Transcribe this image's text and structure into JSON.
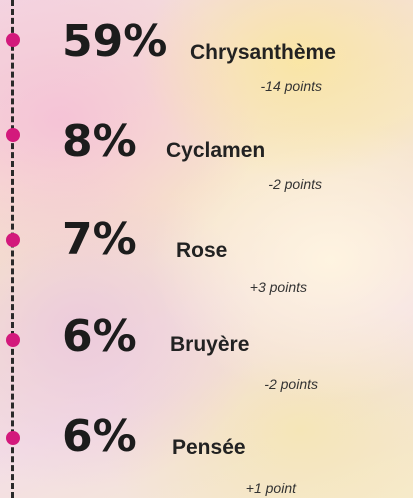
{
  "items": [
    {
      "percent": "59%",
      "name": "Chrysanthème",
      "change": "-14 points"
    },
    {
      "percent": "8%",
      "name": "Cyclamen",
      "change": "-2 points"
    },
    {
      "percent": "7%",
      "name": "Rose",
      "change": "+3 points"
    },
    {
      "percent": "6%",
      "name": "Bruyère",
      "change": "-2 points"
    },
    {
      "percent": "6%",
      "name": "Pensée",
      "change": "+1 point"
    }
  ]
}
